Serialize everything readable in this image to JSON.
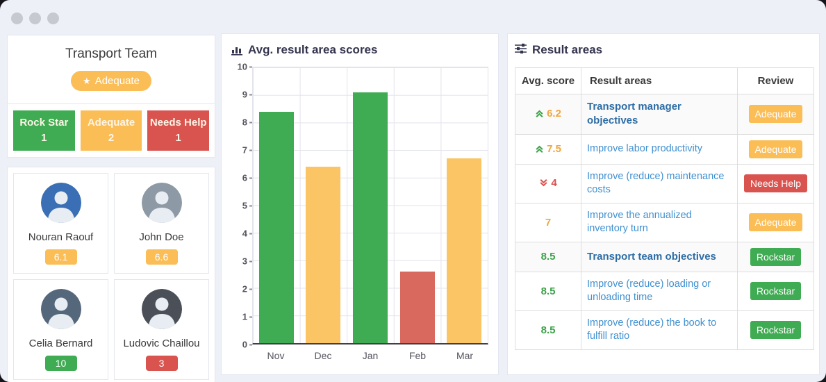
{
  "window": {
    "controls": [
      "dot",
      "dot",
      "dot"
    ]
  },
  "icons": {
    "team_badge_star": "★",
    "chart_title": "bar-chart",
    "results_title": "sliders"
  },
  "team_panel": {
    "title": "Transport Team",
    "overall_badge": {
      "label": "Adequate",
      "color": "#fbbd56"
    },
    "status_boxes": [
      {
        "label": "Rock Star",
        "count": "1",
        "color": "#3fab52"
      },
      {
        "label": "Adequate",
        "count": "2",
        "color": "#fbbd56"
      },
      {
        "label": "Needs Help",
        "count": "1",
        "color": "#d9534f"
      }
    ],
    "members": [
      {
        "name": "Nouran Raouf",
        "score": "6.1",
        "score_color": "#fbbd56",
        "avatar_bg": "#3b6fb5"
      },
      {
        "name": "John Doe",
        "score": "6.6",
        "score_color": "#fbbd56",
        "avatar_bg": "#8d9aa5"
      },
      {
        "name": "Celia Bernard",
        "score": "10",
        "score_color": "#3fab52",
        "avatar_bg": "#55677a"
      },
      {
        "name": "Ludovic Chaillou",
        "score": "3",
        "score_color": "#d9534f",
        "avatar_bg": "#4a4f58"
      }
    ]
  },
  "chart_panel": {
    "title": "Avg. result area scores"
  },
  "chart_data": {
    "type": "bar",
    "title": "Avg. result area scores",
    "categories": [
      "Nov",
      "Dec",
      "Jan",
      "Feb",
      "Mar"
    ],
    "values": [
      8.4,
      6.4,
      9.1,
      2.6,
      6.7
    ],
    "colors": [
      "#3fab52",
      "#fbc566",
      "#3fab52",
      "#d9695f",
      "#fbc566"
    ],
    "xlabel": "",
    "ylabel": "",
    "ylim": [
      0,
      10
    ],
    "y_ticks": [
      0,
      1,
      2,
      3,
      4,
      5,
      6,
      7,
      8,
      9,
      10
    ],
    "grid": true,
    "legend": false
  },
  "results_panel": {
    "title": "Result areas",
    "table": {
      "headers": [
        "Avg. score",
        "Result areas",
        "Review"
      ],
      "rows": [
        {
          "score": "6.2",
          "score_color": "#f0a63c",
          "trend": "up",
          "area": "Transport manager objectives",
          "bold": true,
          "section": true,
          "review": "Adequate",
          "review_color": "#fbbd56"
        },
        {
          "score": "7.5",
          "score_color": "#f0a63c",
          "trend": "up",
          "area": "Improve labor productivity",
          "bold": false,
          "section": false,
          "review": "Adequate",
          "review_color": "#fbbd56"
        },
        {
          "score": "4",
          "score_color": "#d9534f",
          "trend": "down",
          "area": "Improve (reduce) maintenance costs",
          "bold": false,
          "section": false,
          "review": "Needs Help",
          "review_color": "#d9534f"
        },
        {
          "score": "7",
          "score_color": "#f0a63c",
          "trend": "none",
          "area": "Improve the annualized inventory turn",
          "bold": false,
          "section": false,
          "review": "Adequate",
          "review_color": "#fbbd56"
        },
        {
          "score": "8.5",
          "score_color": "#3ca24a",
          "trend": "none",
          "area": "Transport team objectives",
          "bold": true,
          "section": true,
          "review": "Rockstar",
          "review_color": "#3fab52"
        },
        {
          "score": "8.5",
          "score_color": "#3ca24a",
          "trend": "none",
          "area": "Improve (reduce) loading or unloading time",
          "bold": false,
          "section": false,
          "review": "Rockstar",
          "review_color": "#3fab52"
        },
        {
          "score": "8.5",
          "score_color": "#3ca24a",
          "trend": "none",
          "area": "Improve (reduce) the book to fulfill ratio",
          "bold": false,
          "section": false,
          "review": "Rockstar",
          "review_color": "#3fab52"
        }
      ]
    }
  }
}
